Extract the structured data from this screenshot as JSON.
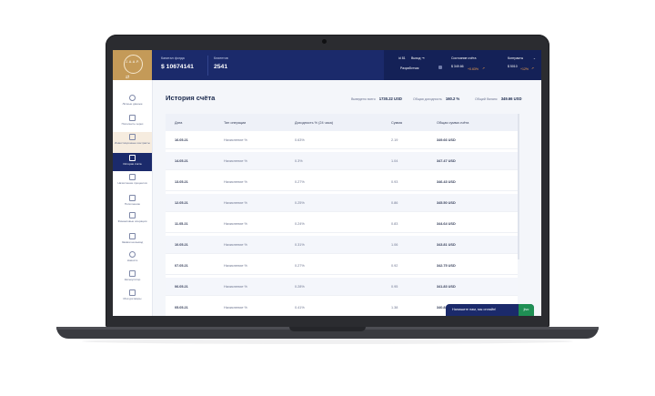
{
  "logo": {
    "text": "J.A.A.P."
  },
  "topbar": {
    "capital_label": "Капитал фонда",
    "capital_value": "$ 10674141",
    "clients_label": "Клиентов",
    "clients_value": "2541",
    "user_id": "id 81",
    "logout": "Выход",
    "role": "Разработчик",
    "account_label": "Состояние счёта",
    "account_value": "$ 349.66",
    "account_change": "+0.63%",
    "contracts_label": "Контракты",
    "contracts_value": "$ 5010",
    "contracts_change": "+12%"
  },
  "sidebar": {
    "items": [
      {
        "label": "Личные данные"
      },
      {
        "label": "Пополнить через"
      },
      {
        "label": "Инвестиционные контракты"
      },
      {
        "label": "История счёта"
      },
      {
        "label": "Начисление процентов"
      },
      {
        "label": "Пополнение"
      },
      {
        "label": "Финансовые операции"
      },
      {
        "label": "Заявки на вывод"
      },
      {
        "label": "Новости"
      },
      {
        "label": "Калькулятор"
      },
      {
        "label": "Мои договоры"
      }
    ]
  },
  "page": {
    "title": "История счёта",
    "withdrawn_label": "Выведено всего",
    "withdrawn_value": "1730.22 USD",
    "yield_label": "Общая доходность",
    "yield_value": "160.2 %",
    "balance_label": "Общий баланс",
    "balance_value": "349.66 USD"
  },
  "table": {
    "headers": [
      "Дата",
      "Тип операции",
      "Доходность % (24 часа)",
      "Сумма",
      "Общая сумма счёта"
    ],
    "rows": [
      {
        "date": "16.05.21",
        "type": "Начисление %",
        "yield": "0.63%",
        "amount": "2.19",
        "total": "349.66 USD"
      },
      {
        "date": "14.05.21",
        "type": "Начисление %",
        "yield": "0.3%",
        "amount": "1.04",
        "total": "347.47 USD"
      },
      {
        "date": "13.05.21",
        "type": "Начисление %",
        "yield": "0.27%",
        "amount": "0.93",
        "total": "346.43 USD"
      },
      {
        "date": "12.05.21",
        "type": "Начисление %",
        "yield": "0.25%",
        "amount": "0.86",
        "total": "345.50 USD"
      },
      {
        "date": "11.05.21",
        "type": "Начисление %",
        "yield": "0.24%",
        "amount": "0.83",
        "total": "344.64 USD"
      },
      {
        "date": "10.05.21",
        "type": "Начисление %",
        "yield": "0.31%",
        "amount": "1.06",
        "total": "343.81 USD"
      },
      {
        "date": "07.05.21",
        "type": "Начисление %",
        "yield": "0.27%",
        "amount": "0.92",
        "total": "342.75 USD"
      },
      {
        "date": "06.05.21",
        "type": "Начисление %",
        "yield": "0.28%",
        "amount": "0.95",
        "total": "341.83 USD"
      },
      {
        "date": "05.05.21",
        "type": "Начисление %",
        "yield": "0.41%",
        "amount": "1.38",
        "total": "340.88 USD"
      }
    ]
  },
  "chat": {
    "text": "Напишите нам, мы онлайн!",
    "badge": "jivo"
  }
}
